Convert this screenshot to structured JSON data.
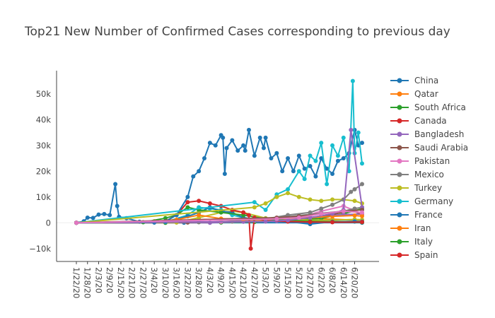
{
  "chart_data": {
    "type": "line",
    "title": "Top21 New Number of Confirmed Cases corresponding to previous day",
    "xlabel": "",
    "ylabel": "",
    "x_tick_labels": [
      "1/22/20",
      "1/28/20",
      "2/3/20",
      "2/9/20",
      "2/15/20",
      "2/21/20",
      "2/27/20",
      "3/4/20",
      "3/10/20",
      "3/16/20",
      "3/22/20",
      "3/28/20",
      "4/3/20",
      "4/9/20",
      "4/15/20",
      "4/21/20",
      "4/27/20",
      "5/3/20",
      "5/9/20",
      "5/15/20",
      "5/21/20",
      "5/27/20",
      "6/2/20",
      "6/8/20",
      "6/14/20",
      "6/20/20"
    ],
    "y_tick_labels": [
      "−10k",
      "0",
      "10k",
      "20k",
      "30k",
      "40k",
      "50k"
    ],
    "y_tick_values": [
      -10000,
      0,
      10000,
      20000,
      30000,
      40000,
      50000
    ],
    "ylim": [
      -15000,
      59000
    ],
    "grid": false,
    "legend_position": "right",
    "series": [
      {
        "name": "China",
        "color": "#1f77b4",
        "x": [
          "1/22/20",
          "1/26/20",
          "1/28/20",
          "1/31/20",
          "2/3/20",
          "2/6/20",
          "2/9/20",
          "2/12/20",
          "2/13/20",
          "2/14/20",
          "2/18/20",
          "2/25/20",
          "3/4/20",
          "3/20/20",
          "6/24/20"
        ],
        "y": [
          0,
          600,
          2000,
          1900,
          3200,
          3400,
          3000,
          15000,
          6500,
          2300,
          1800,
          400,
          100,
          50,
          30
        ]
      },
      {
        "name": "Qatar",
        "color": "#ff7f0e",
        "x": [
          "1/22/20",
          "3/10/20",
          "4/9/20",
          "4/27/20",
          "5/15/20",
          "5/27/20",
          "6/8/20",
          "6/24/20"
        ],
        "y": [
          0,
          0,
          200,
          700,
          1500,
          1800,
          1400,
          900
        ]
      },
      {
        "name": "South Africa",
        "color": "#2ca02c",
        "x": [
          "1/22/20",
          "3/10/20",
          "4/9/20",
          "4/27/20",
          "5/15/20",
          "6/2/20",
          "6/14/20",
          "6/24/20"
        ],
        "y": [
          0,
          0,
          100,
          300,
          900,
          1700,
          3500,
          5500
        ]
      },
      {
        "name": "Canada",
        "color": "#d62728",
        "x": [
          "1/22/20",
          "3/16/20",
          "3/28/20",
          "4/9/20",
          "4/21/20",
          "5/3/20",
          "5/15/20",
          "5/27/20",
          "6/8/20",
          "6/24/20"
        ],
        "y": [
          0,
          150,
          1200,
          1400,
          1700,
          1500,
          1100,
          900,
          500,
          300
        ]
      },
      {
        "name": "Bangladesh",
        "color": "#9467bd",
        "x": [
          "1/22/20",
          "4/3/20",
          "4/21/20",
          "5/9/20",
          "5/21/20",
          "6/2/20",
          "6/14/20",
          "6/24/20"
        ],
        "y": [
          0,
          20,
          400,
          700,
          1600,
          2600,
          3200,
          3400
        ]
      },
      {
        "name": "Saudi Arabia",
        "color": "#8c564b",
        "x": [
          "1/22/20",
          "3/22/20",
          "4/9/20",
          "4/27/20",
          "5/15/20",
          "5/27/20",
          "6/8/20",
          "6/18/20",
          "6/24/20"
        ],
        "y": [
          0,
          100,
          400,
          1200,
          2500,
          2000,
          3200,
          4800,
          3300
        ]
      },
      {
        "name": "Pakistan",
        "color": "#e377c2",
        "x": [
          "1/22/20",
          "3/16/20",
          "4/9/20",
          "4/27/20",
          "5/9/20",
          "5/21/20",
          "6/2/20",
          "6/14/20",
          "6/24/20"
        ],
        "y": [
          0,
          200,
          400,
          800,
          1500,
          2000,
          4500,
          6500,
          3500
        ]
      },
      {
        "name": "Mexico",
        "color": "#7f7f7f",
        "x": [
          "1/22/20",
          "3/28/20",
          "4/15/20",
          "4/27/20",
          "5/9/20",
          "5/21/20",
          "6/2/20",
          "6/14/20",
          "6/20/20",
          "6/24/20"
        ],
        "y": [
          0,
          200,
          500,
          1200,
          1900,
          2800,
          3700,
          4500,
          5500,
          6000
        ]
      },
      {
        "name": "Turkey",
        "color": "#bcbd22",
        "x": [
          "1/22/20",
          "3/16/20",
          "3/28/20",
          "4/9/20",
          "4/15/20",
          "4/21/20",
          "5/3/20",
          "5/15/20",
          "5/27/20",
          "6/8/20",
          "6/20/20",
          "6/24/20"
        ],
        "y": [
          0,
          100,
          2000,
          4000,
          4500,
          4000,
          1800,
          1500,
          1000,
          1000,
          1300,
          1200
        ]
      },
      {
        "name": "Germany",
        "color": "#17becf",
        "x": [
          "1/22/20",
          "3/10/20",
          "3/22/20",
          "3/28/20",
          "4/3/20",
          "4/9/20",
          "4/15/20",
          "4/21/20",
          "4/27/20",
          "5/3/20",
          "5/15/20",
          "5/27/20",
          "6/8/20",
          "6/20/20",
          "6/24/20"
        ],
        "y": [
          0,
          300,
          3000,
          6000,
          5500,
          5000,
          3000,
          2000,
          1200,
          800,
          700,
          500,
          400,
          600,
          500
        ]
      },
      {
        "name": "France",
        "color": "#1f77b4",
        "x": [
          "1/22/20",
          "3/10/20",
          "3/22/20",
          "3/28/20",
          "4/3/20",
          "4/9/20",
          "4/15/20",
          "4/21/20",
          "4/27/20",
          "5/3/20",
          "5/15/20",
          "5/27/20",
          "6/8/20",
          "6/20/20",
          "6/24/20"
        ],
        "y": [
          0,
          400,
          2500,
          4000,
          6000,
          4500,
          4000,
          2000,
          1500,
          1000,
          500,
          -500,
          400,
          500,
          400
        ]
      },
      {
        "name": "Iran",
        "color": "#ff7f0e",
        "x": [
          "1/22/20",
          "3/4/20",
          "3/16/20",
          "3/28/20",
          "4/9/20",
          "4/21/20",
          "5/3/20",
          "5/15/20",
          "5/27/20",
          "6/8/20",
          "6/20/20",
          "6/24/20"
        ],
        "y": [
          0,
          600,
          1200,
          3000,
          1600,
          1200,
          1000,
          1800,
          2000,
          2500,
          2800,
          2600
        ]
      },
      {
        "name": "Italy",
        "color": "#2ca02c",
        "x": [
          "1/22/20",
          "2/27/20",
          "3/10/20",
          "3/16/20",
          "3/22/20",
          "3/28/20",
          "4/9/20",
          "4/21/20",
          "5/3/20",
          "5/15/20",
          "5/27/20",
          "6/8/20",
          "6/24/20"
        ],
        "y": [
          0,
          200,
          1800,
          3000,
          6000,
          5000,
          4000,
          3000,
          1500,
          900,
          600,
          300,
          200
        ]
      },
      {
        "name": "Spain",
        "color": "#d62728",
        "x": [
          "1/22/20",
          "3/10/20",
          "3/16/20",
          "3/22/20",
          "3/28/20",
          "4/3/20",
          "4/9/20",
          "4/15/20",
          "4/21/20",
          "4/24/20",
          "4/25/20",
          "4/27/20",
          "5/3/20",
          "5/15/20",
          "5/27/20",
          "6/8/20",
          "6/24/20"
        ],
        "y": [
          0,
          600,
          3000,
          8000,
          8500,
          7500,
          6500,
          5000,
          4000,
          3000,
          -10000,
          2000,
          800,
          500,
          300,
          200,
          300
        ]
      },
      {
        "name": "",
        "color": "#1f77b4",
        "x": [
          "1/22/20",
          "3/4/20",
          "3/10/20",
          "3/16/20",
          "3/22/20",
          "3/25/20",
          "3/28/20",
          "3/31/20",
          "4/3/20",
          "4/6/20",
          "4/9/20",
          "4/10/20",
          "4/11/20",
          "4/12/20",
          "4/15/20",
          "4/18/20",
          "4/21/20",
          "4/22/20",
          "4/24/20",
          "4/27/20",
          "4/30/20",
          "5/2/20",
          "5/3/20",
          "5/6/20",
          "5/9/20",
          "5/12/20",
          "5/15/20",
          "5/18/20",
          "5/21/20",
          "5/24/20",
          "5/27/20",
          "5/30/20",
          "6/2/20",
          "6/5/20",
          "6/8/20",
          "6/11/20",
          "6/14/20",
          "6/17/20",
          "6/20/20",
          "6/22/20",
          "6/24/20"
        ],
        "y": [
          0,
          100,
          500,
          3000,
          10000,
          18000,
          20000,
          25000,
          31000,
          30000,
          34000,
          33000,
          19000,
          29000,
          32000,
          28000,
          30000,
          28000,
          36000,
          26000,
          33000,
          29000,
          33000,
          25000,
          27000,
          20000,
          25000,
          20000,
          26000,
          21000,
          22000,
          18000,
          25000,
          21000,
          19000,
          24000,
          25000,
          27000,
          36000,
          30000,
          31000
        ]
      },
      {
        "name": "",
        "color": "#17becf",
        "x": [
          "1/22/20",
          "4/27/20",
          "5/3/20",
          "5/9/20",
          "5/15/20",
          "5/21/20",
          "5/24/20",
          "5/27/20",
          "5/30/20",
          "6/2/20",
          "6/5/20",
          "6/8/20",
          "6/11/20",
          "6/14/20",
          "6/17/20",
          "6/19/20",
          "6/20/20",
          "6/22/20",
          "6/24/20"
        ],
        "y": [
          0,
          8000,
          5000,
          11000,
          13000,
          20000,
          17000,
          26000,
          24000,
          31000,
          15000,
          30000,
          26000,
          33000,
          20000,
          55000,
          27000,
          35000,
          23000
        ]
      },
      {
        "name": "",
        "color": "#bcbd22",
        "x": [
          "1/22/20",
          "4/27/20",
          "5/3/20",
          "5/9/20",
          "5/15/20",
          "5/21/20",
          "5/27/20",
          "6/2/20",
          "6/8/20",
          "6/14/20",
          "6/20/20",
          "6/24/20"
        ],
        "y": [
          0,
          6000,
          7500,
          10000,
          11500,
          10000,
          9000,
          8500,
          9000,
          9000,
          8500,
          7500
        ]
      },
      {
        "name": "",
        "color": "#7f7f7f",
        "x": [
          "1/22/20",
          "5/3/20",
          "5/15/20",
          "5/27/20",
          "6/2/20",
          "6/8/20",
          "6/14/20",
          "6/18/20",
          "6/20/20",
          "6/24/20"
        ],
        "y": [
          0,
          1500,
          3000,
          4000,
          5500,
          7000,
          9000,
          12000,
          13000,
          15000
        ]
      },
      {
        "name": "",
        "color": "#9467bd",
        "x": [
          "1/22/20",
          "5/3/20",
          "5/15/20",
          "5/27/20",
          "6/8/20",
          "6/14/20",
          "6/18/20",
          "6/24/20"
        ],
        "y": [
          0,
          500,
          1000,
          2000,
          3500,
          5000,
          36000,
          6000
        ]
      },
      {
        "name": "",
        "color": "#8c564b",
        "x": [
          "1/22/20",
          "5/9/20",
          "5/21/20",
          "6/2/20",
          "6/14/20",
          "6/24/20"
        ],
        "y": [
          0,
          2000,
          2500,
          3500,
          4500,
          5000
        ]
      },
      {
        "name": "",
        "color": "#e377c2",
        "x": [
          "1/22/20",
          "5/9/20",
          "5/21/20",
          "6/2/20",
          "6/14/20",
          "6/24/20"
        ],
        "y": [
          0,
          1500,
          2000,
          3500,
          4500,
          4000
        ]
      }
    ]
  }
}
